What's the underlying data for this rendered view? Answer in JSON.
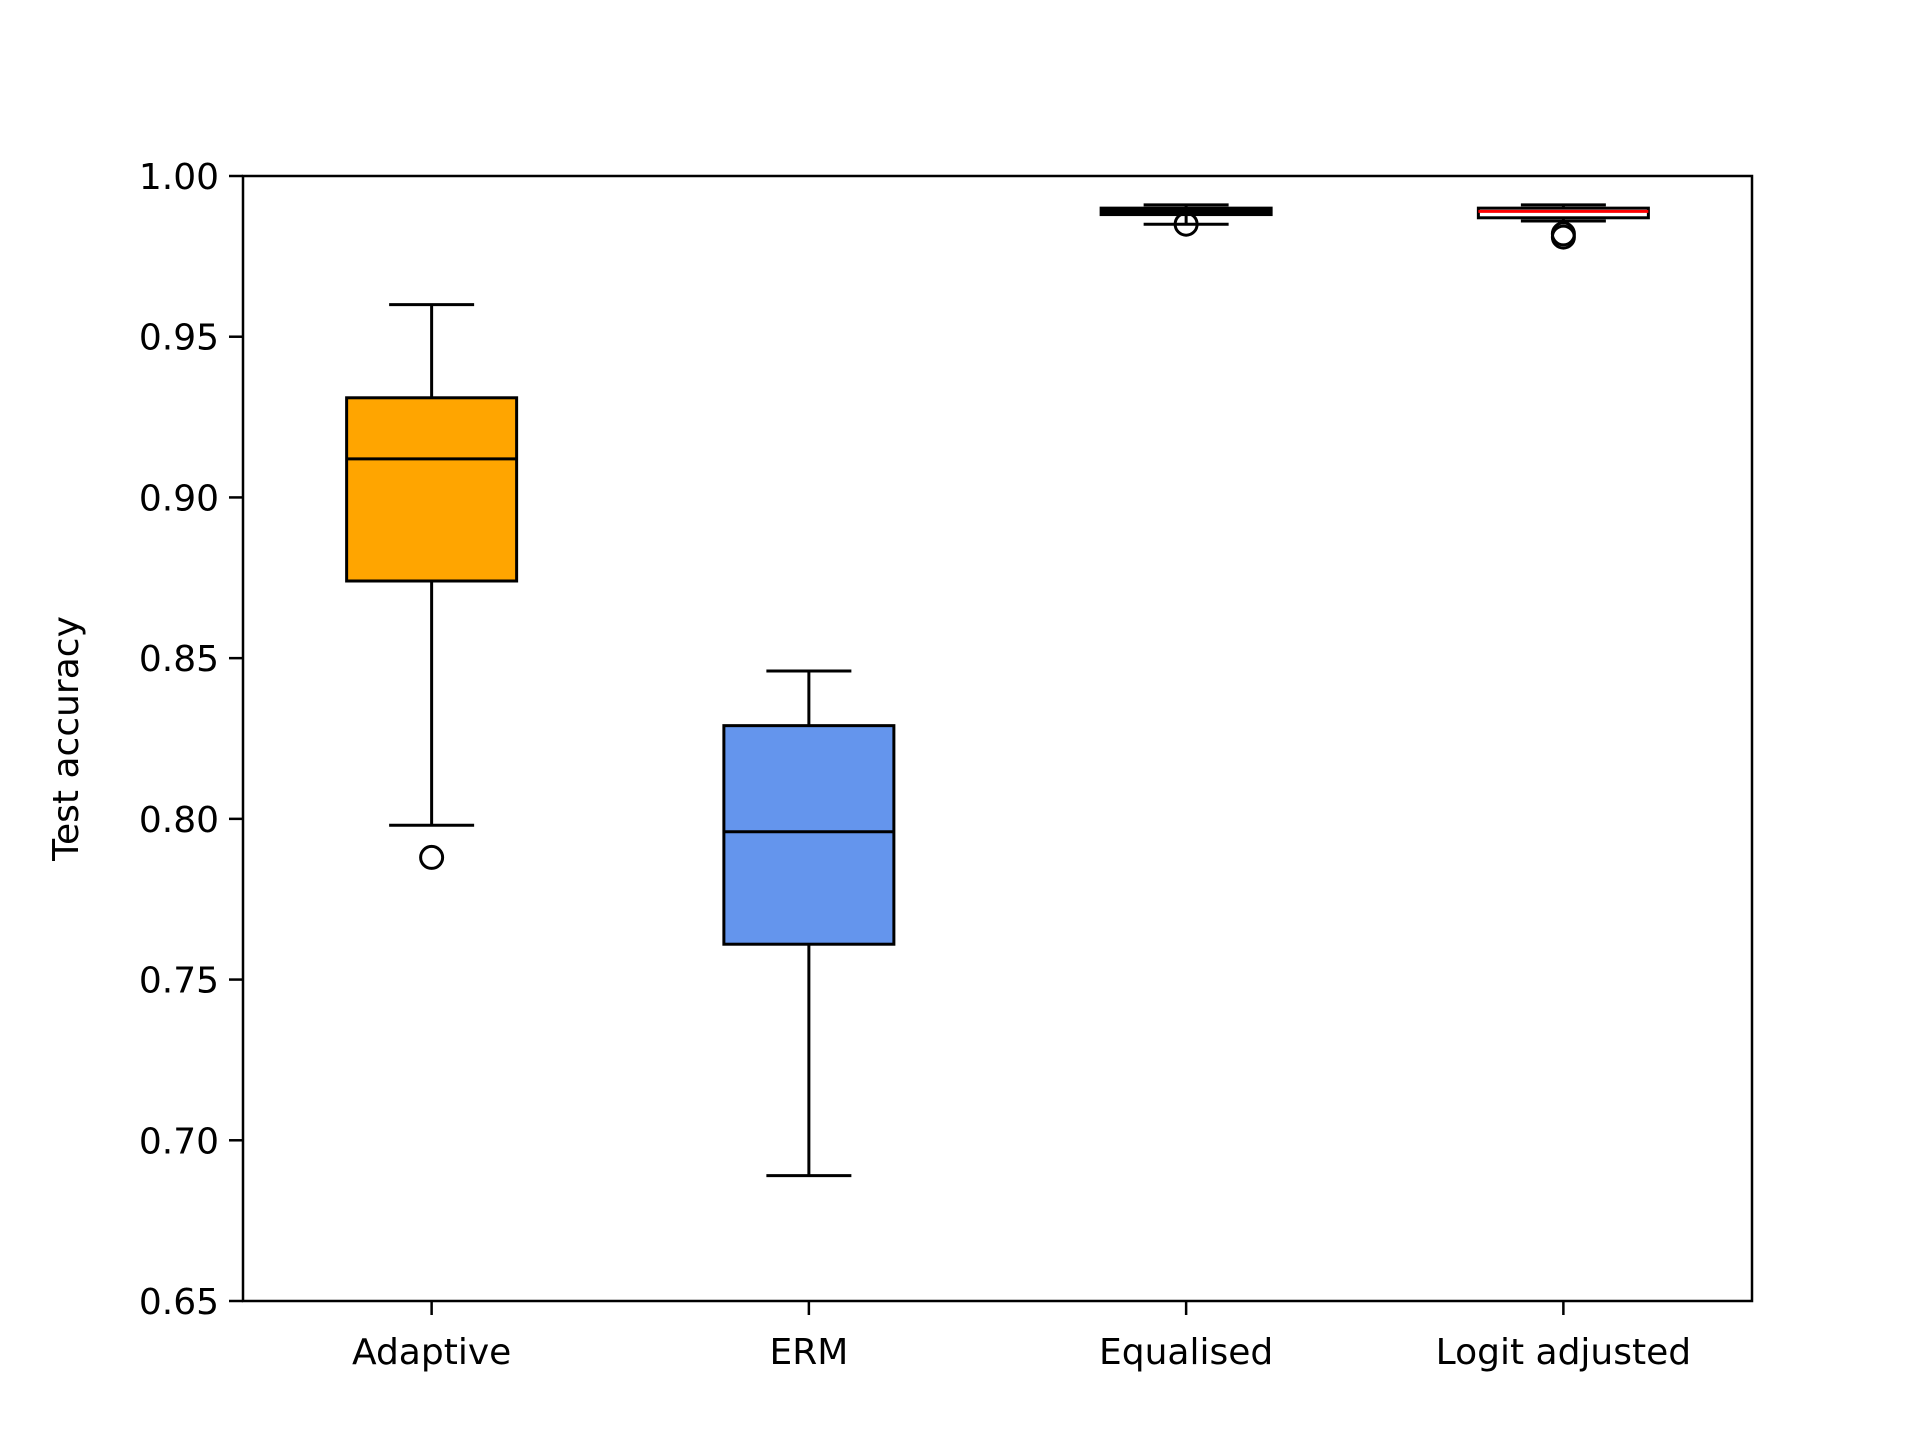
{
  "chart_data": {
    "type": "box",
    "title": "",
    "xlabel": "",
    "ylabel": "Test accuracy",
    "ylim": [
      0.65,
      1.0
    ],
    "yticks": [
      0.65,
      0.7,
      0.75,
      0.8,
      0.85,
      0.9,
      0.95,
      1.0
    ],
    "ytick_labels": [
      "0.65",
      "0.70",
      "0.75",
      "0.80",
      "0.85",
      "0.90",
      "0.95",
      "1.00"
    ],
    "grid": false,
    "legend": "none",
    "categories": [
      "Adaptive",
      "ERM",
      "Equalised",
      "Logit adjusted"
    ],
    "boxes": [
      {
        "category": "Adaptive",
        "whisker_low": 0.798,
        "q1": 0.874,
        "median": 0.912,
        "q3": 0.931,
        "whisker_high": 0.96,
        "outliers": [
          0.788
        ],
        "fill": "#FFA500",
        "median_color": "#000000"
      },
      {
        "category": "ERM",
        "whisker_low": 0.689,
        "q1": 0.761,
        "median": 0.796,
        "q3": 0.829,
        "whisker_high": 0.846,
        "outliers": [],
        "fill": "#6495ED",
        "median_color": "#000000"
      },
      {
        "category": "Equalised",
        "whisker_low": 0.985,
        "q1": 0.988,
        "median": 0.989,
        "q3": 0.99,
        "whisker_high": 0.991,
        "outliers": [
          0.985
        ],
        "fill": "#000000",
        "median_color": "#000000"
      },
      {
        "category": "Logit adjusted",
        "whisker_low": 0.986,
        "q1": 0.987,
        "median": 0.989,
        "q3": 0.99,
        "whisker_high": 0.991,
        "outliers": [
          0.981,
          0.982
        ],
        "fill": "#ffffff",
        "median_color": "#FF0000"
      }
    ]
  }
}
